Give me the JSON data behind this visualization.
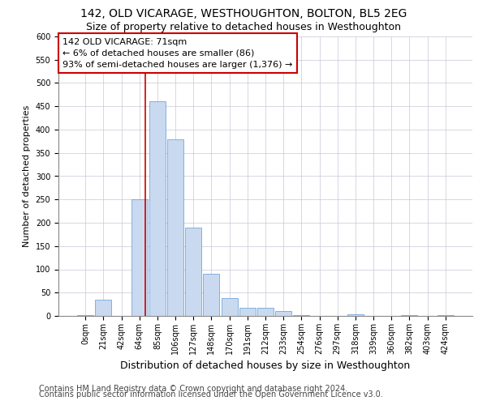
{
  "title": "142, OLD VICARAGE, WESTHOUGHTON, BOLTON, BL5 2EG",
  "subtitle": "Size of property relative to detached houses in Westhoughton",
  "xlabel": "Distribution of detached houses by size in Westhoughton",
  "ylabel": "Number of detached properties",
  "footnote1": "Contains HM Land Registry data © Crown copyright and database right 2024.",
  "footnote2": "Contains public sector information licensed under the Open Government Licence v3.0.",
  "bar_color": "#c9d9f0",
  "bar_edge_color": "#5b9bd5",
  "annotation_box_color": "#cc0000",
  "property_line_color": "#cc0000",
  "property_size": 71,
  "annotation_text": "142 OLD VICARAGE: 71sqm\n← 6% of detached houses are smaller (86)\n93% of semi-detached houses are larger (1,376) →",
  "bin_labels": [
    "0sqm",
    "21sqm",
    "42sqm",
    "64sqm",
    "85sqm",
    "106sqm",
    "127sqm",
    "148sqm",
    "170sqm",
    "191sqm",
    "212sqm",
    "233sqm",
    "254sqm",
    "276sqm",
    "297sqm",
    "318sqm",
    "339sqm",
    "360sqm",
    "382sqm",
    "403sqm",
    "424sqm"
  ],
  "bar_heights": [
    2,
    35,
    0,
    251,
    460,
    379,
    190,
    91,
    38,
    17,
    18,
    10,
    2,
    0,
    0,
    3,
    0,
    0,
    2,
    0,
    2
  ],
  "ylim": [
    0,
    600
  ],
  "yticks": [
    0,
    50,
    100,
    150,
    200,
    250,
    300,
    350,
    400,
    450,
    500,
    550,
    600
  ],
  "title_fontsize": 10,
  "subtitle_fontsize": 9,
  "xlabel_fontsize": 9,
  "ylabel_fontsize": 8,
  "footnote_fontsize": 7,
  "annotation_fontsize": 8,
  "tick_fontsize": 7,
  "background_color": "#ffffff",
  "grid_color": "#c8c8d8"
}
